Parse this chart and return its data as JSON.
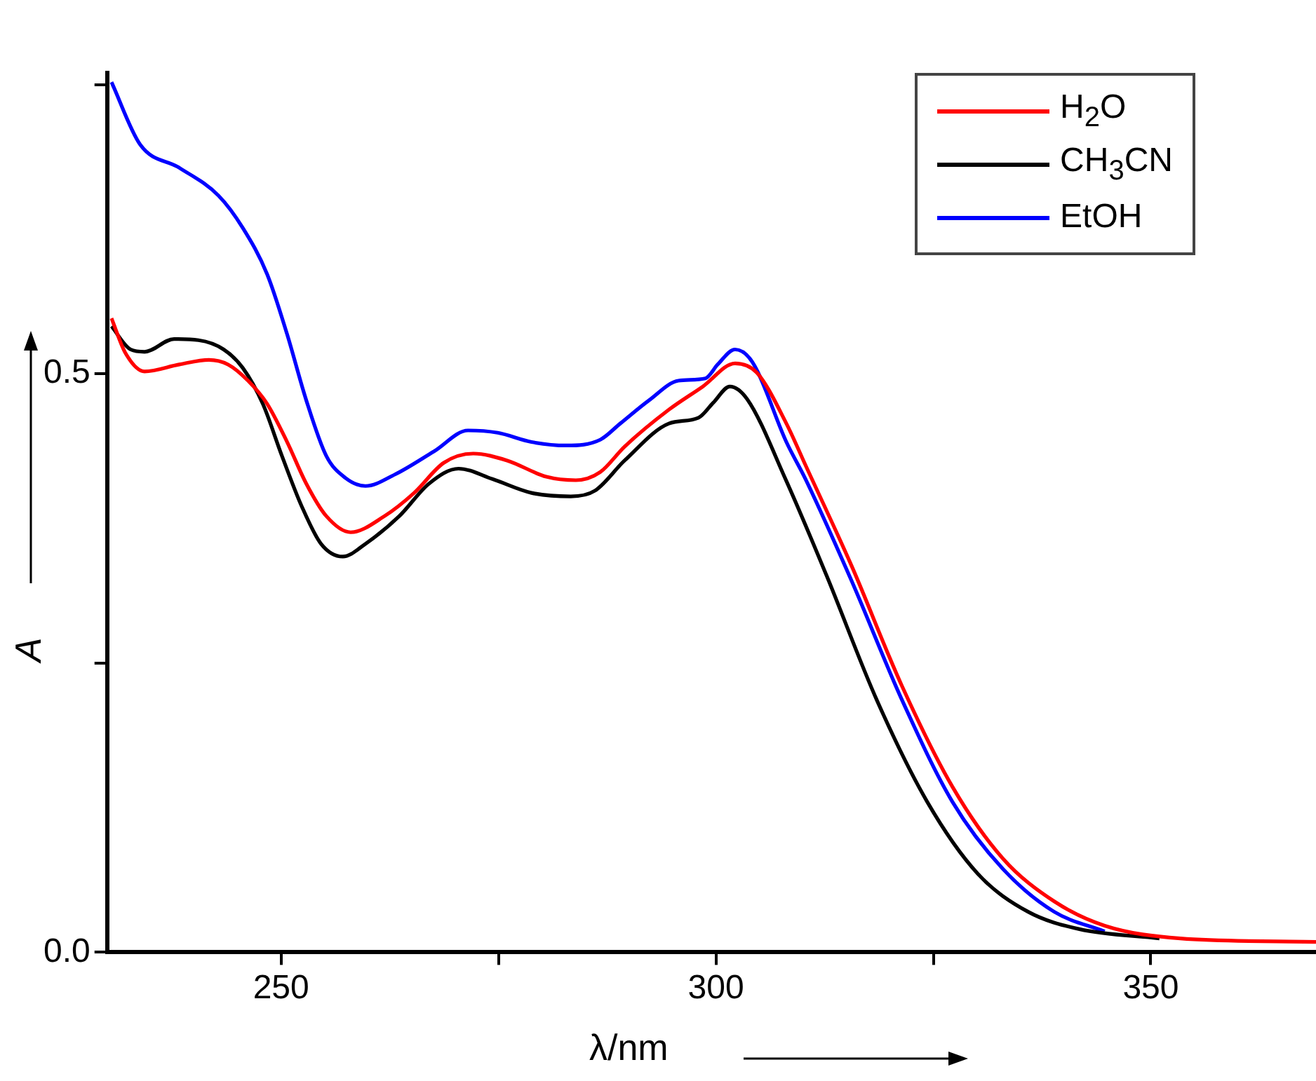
{
  "chart_data": {
    "type": "line",
    "xlabel": "λ/nm",
    "ylabel": "A",
    "legend": "top right",
    "xlim": [
      230,
      369
    ],
    "xticks": [
      250,
      {
        "value": 275,
        "label": null
      },
      300,
      {
        "value": 325,
        "label": null
      },
      350
    ],
    "ylim": [
      0,
      0.76
    ],
    "yticks": [
      {
        "value": 0,
        "label": "0.0"
      },
      {
        "value": 0.25,
        "label": null
      },
      0.5,
      {
        "value": 0.75,
        "label": null
      }
    ],
    "series": [
      {
        "name": "H$_{2}$O",
        "color": "#ff0000",
        "x": [
          230.5,
          232.1,
          234.3,
          238.3,
          241.7,
          243.9,
          246.2,
          248.4,
          250.7,
          252.9,
          255.2,
          258.0,
          261.9,
          265.3,
          268.7,
          272.1,
          276.0,
          280.5,
          283.9,
          286.7,
          289.5,
          294.6,
          298.5,
          302.2,
          304.7,
          308.1,
          310.3,
          315.6,
          321.4,
          327.2,
          333.0,
          338.9,
          344.7,
          353.4,
          369
        ],
        "values": [
          0.548,
          0.518,
          0.502,
          0.508,
          0.512,
          0.508,
          0.494,
          0.474,
          0.441,
          0.405,
          0.377,
          0.363,
          0.377,
          0.397,
          0.423,
          0.431,
          0.425,
          0.411,
          0.408,
          0.415,
          0.437,
          0.469,
          0.489,
          0.509,
          0.501,
          0.457,
          0.421,
          0.334,
          0.23,
          0.143,
          0.081,
          0.044,
          0.023,
          0.012,
          0.009
        ]
      },
      {
        "name": "CH$_{3}$CN",
        "color": "#000000",
        "x": [
          230.5,
          232.7,
          234.3,
          237.7,
          240.5,
          243.4,
          245.6,
          247.9,
          250.1,
          252.4,
          254.6,
          257.1,
          259.7,
          263.6,
          267.0,
          270.4,
          274.3,
          278.8,
          283.3,
          286.1,
          289.5,
          294.6,
          298.0,
          299.7,
          301.6,
          303.6,
          308.0,
          312.7,
          318.5,
          324.3,
          330.1,
          335.9,
          341.8,
          351
        ],
        "values": [
          0.541,
          0.521,
          0.519,
          0.53,
          0.529,
          0.521,
          0.505,
          0.474,
          0.429,
          0.385,
          0.353,
          0.342,
          0.353,
          0.377,
          0.405,
          0.418,
          0.409,
          0.397,
          0.394,
          0.399,
          0.425,
          0.457,
          0.462,
          0.475,
          0.489,
          0.478,
          0.409,
          0.326,
          0.218,
          0.13,
          0.068,
          0.035,
          0.02,
          0.012
        ]
      },
      {
        "name": "EtOH",
        "color": "#0000ff",
        "x": [
          230.5,
          233.8,
          238.3,
          242.8,
          245.6,
          248.4,
          250.7,
          252.9,
          255.2,
          257.4,
          259.7,
          263.1,
          267.6,
          271.5,
          274.9,
          278.8,
          282.8,
          286.7,
          289.0,
          292.3,
          295.7,
          298.8,
          300.2,
          302.2,
          304.2,
          308.1,
          310.3,
          315.6,
          321.4,
          327.2,
          333.0,
          338.9,
          344.7
        ],
        "values": [
          0.752,
          0.698,
          0.678,
          0.654,
          0.626,
          0.586,
          0.534,
          0.477,
          0.429,
          0.41,
          0.403,
          0.413,
          0.433,
          0.451,
          0.449,
          0.441,
          0.438,
          0.443,
          0.457,
          0.477,
          0.494,
          0.496,
          0.508,
          0.521,
          0.51,
          0.441,
          0.409,
          0.321,
          0.218,
          0.13,
          0.072,
          0.035,
          0.018
        ]
      }
    ]
  }
}
